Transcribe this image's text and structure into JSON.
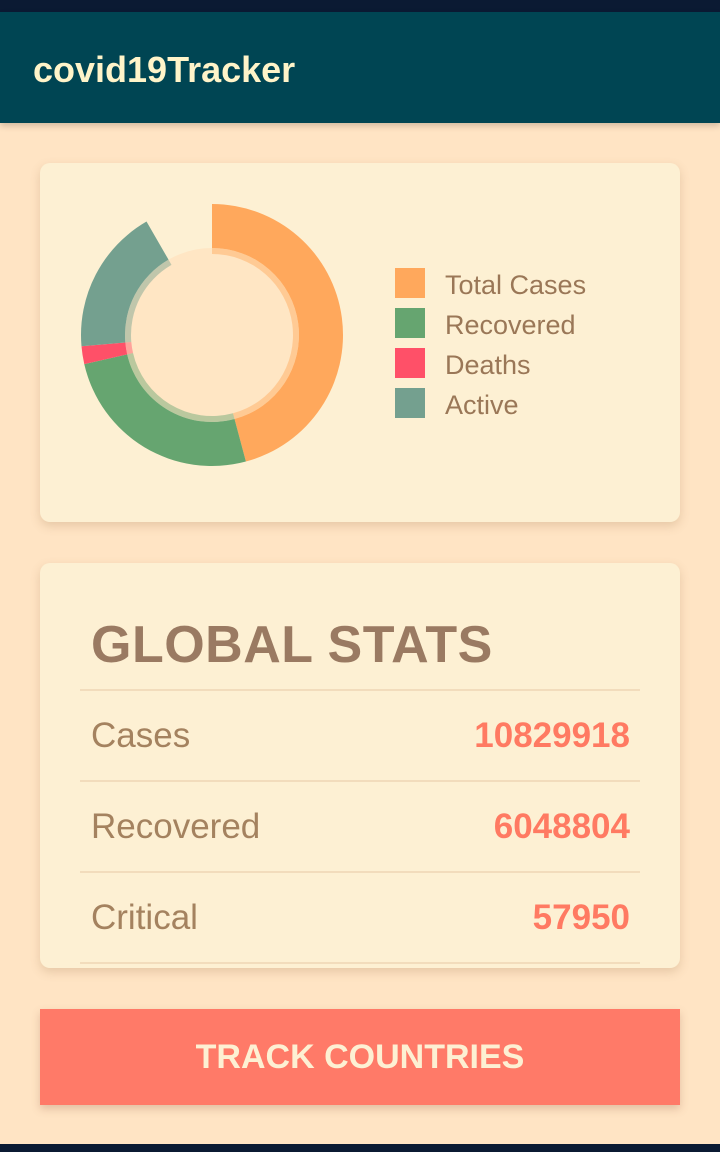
{
  "app": {
    "title": "covid19Tracker"
  },
  "colors": {
    "total_cases": "#ffa85c",
    "recovered": "#66a570",
    "deaths": "#ff5068",
    "active": "#74a08f",
    "accent": "#ff7a68",
    "app_bar": "#004553"
  },
  "chart_data": {
    "type": "pie",
    "style": "donut",
    "categories": [
      "Total Cases",
      "Recovered",
      "Deaths",
      "Active"
    ],
    "values": [
      10829918,
      6048804,
      520000,
      4261114
    ],
    "legend_position": "right"
  },
  "legend": {
    "items": [
      {
        "label": "Total Cases",
        "color": "#ffa85c"
      },
      {
        "label": "Recovered",
        "color": "#66a570"
      },
      {
        "label": "Deaths",
        "color": "#ff5068"
      },
      {
        "label": "Active",
        "color": "#74a08f"
      }
    ]
  },
  "stats": {
    "title": "GLOBAL STATS",
    "rows": [
      {
        "label": "Cases",
        "value": "10829918"
      },
      {
        "label": "Recovered",
        "value": "6048804"
      },
      {
        "label": "Critical",
        "value": "57950"
      }
    ]
  },
  "actions": {
    "track_label": "TRACK COUNTRIES"
  }
}
